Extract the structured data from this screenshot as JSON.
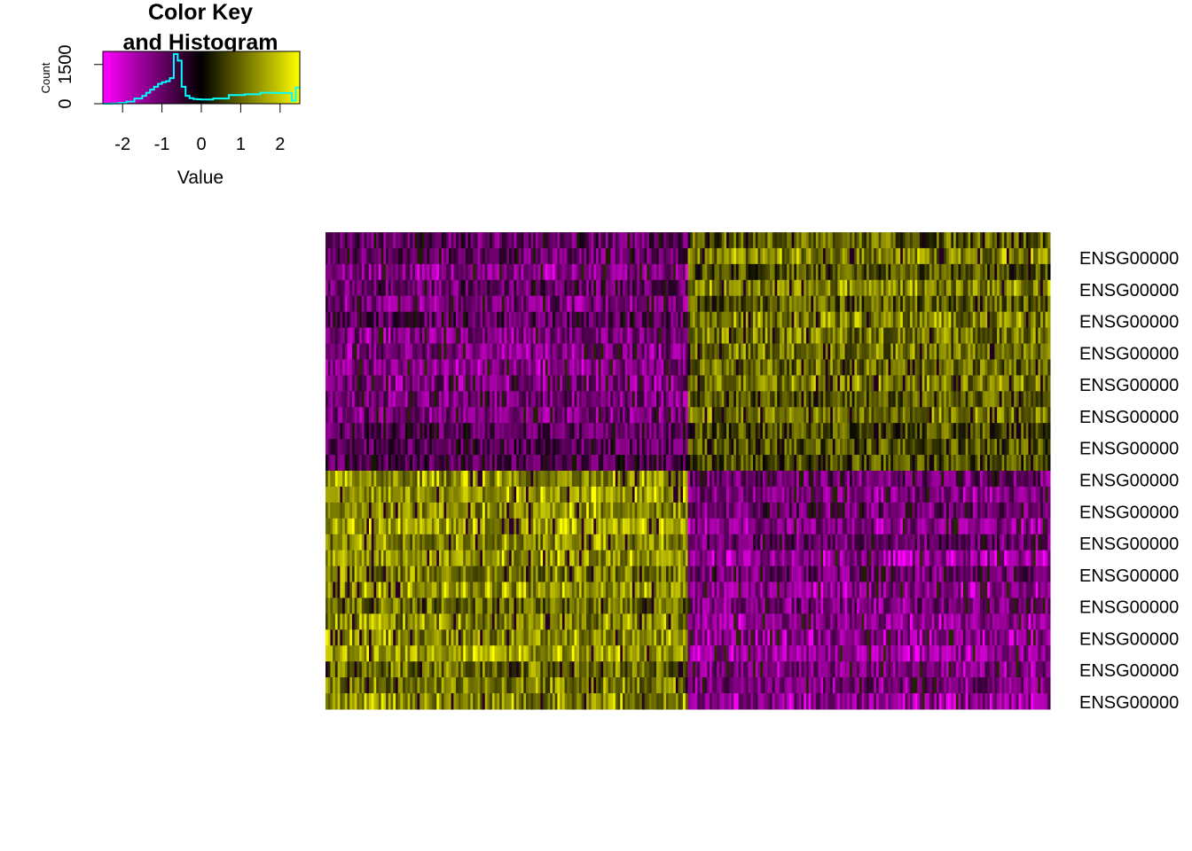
{
  "chart_data": {
    "type": "heatmap",
    "colors": {
      "low": "#ff00ff",
      "mid": "#000000",
      "high": "#ffff00",
      "histogram_line": "#00ffff"
    },
    "color_key": {
      "title_line1": "Color Key",
      "title_line2": "and Histogram",
      "xlabel": "Value",
      "ylabel": "Count",
      "xlim": [
        -2.5,
        2.5
      ],
      "x_ticks": [
        -2,
        -1,
        0,
        1,
        2
      ],
      "x_tick_labels": [
        "-2",
        "-1",
        "0",
        "1",
        "2"
      ],
      "ylim": [
        0,
        2000
      ],
      "y_ticks": [
        0,
        1500
      ],
      "y_tick_labels": [
        "0",
        "1500"
      ],
      "histogram": {
        "bin_edges": [
          -2.5,
          -2.3,
          -2.1,
          -1.9,
          -1.7,
          -1.5,
          -1.4,
          -1.3,
          -1.2,
          -1.1,
          -1.0,
          -0.9,
          -0.8,
          -0.7,
          -0.6,
          -0.5,
          -0.4,
          -0.3,
          -0.2,
          -0.1,
          0.0,
          0.3,
          0.7,
          1.1,
          1.5,
          1.9,
          2.3,
          2.4,
          2.5
        ],
        "counts": [
          0,
          10,
          30,
          80,
          200,
          300,
          420,
          540,
          650,
          760,
          820,
          860,
          980,
          1900,
          1650,
          650,
          300,
          210,
          180,
          170,
          160,
          200,
          330,
          360,
          420,
          410,
          120,
          620
        ]
      }
    },
    "row_labels": [
      "ENSG00000",
      "ENSG00000",
      "ENSG00000",
      "ENSG00000",
      "ENSG00000",
      "ENSG00000",
      "ENSG00000",
      "ENSG00000",
      "ENSG00000",
      "ENSG00000",
      "ENSG00000",
      "ENSG00000",
      "ENSG00000",
      "ENSG00000",
      "ENSG00000"
    ],
    "n_rows": 30,
    "n_cols": 300,
    "column_clusters": [
      {
        "col_start": 0,
        "col_end": 150
      },
      {
        "col_start": 150,
        "col_end": 300
      }
    ],
    "row_clusters": [
      {
        "row_start": 0,
        "row_end": 15,
        "cluster1_mean": -1.0,
        "cluster2_mean": 1.0
      },
      {
        "row_start": 15,
        "row_end": 30,
        "cluster1_mean": 1.3,
        "cluster2_mean": -1.2
      }
    ]
  }
}
